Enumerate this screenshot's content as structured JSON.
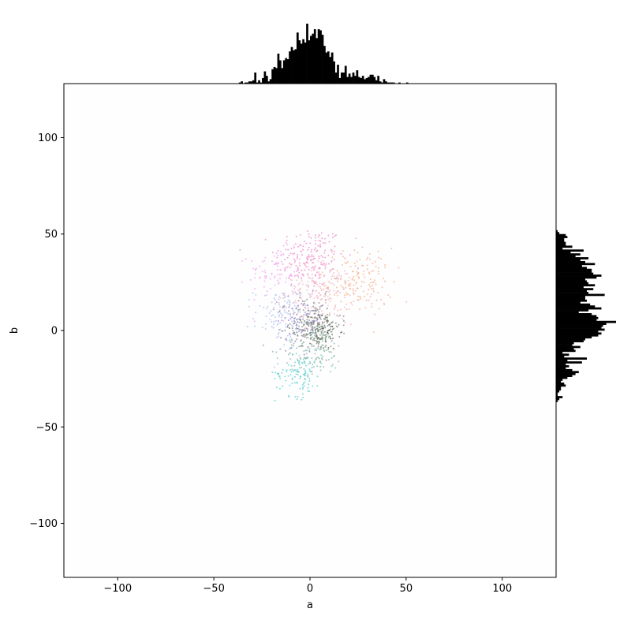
{
  "chart_data": {
    "type": "scatter",
    "title": "",
    "xlabel": "a",
    "ylabel": "b",
    "xlim": [
      -128,
      128
    ],
    "ylim": [
      -128,
      128
    ],
    "x_ticks": [
      -100,
      -50,
      0,
      50,
      100
    ],
    "y_ticks": [
      -100,
      -50,
      0,
      50,
      100
    ],
    "x_tick_labels": [
      "−100",
      "−50",
      "0",
      "50",
      "100"
    ],
    "y_tick_labels": [
      "−100",
      "−50",
      "0",
      "50",
      "100"
    ],
    "grid": false,
    "legend": "none",
    "marginal_histograms": {
      "top": "distribution of a",
      "right": "distribution of b",
      "color": "#000000",
      "approx_peak": {
        "a": -1,
        "b": 12
      }
    },
    "point_clusters": [
      {
        "color": "#f08cc8",
        "center": [
          0,
          38
        ],
        "spread": [
          9,
          8
        ],
        "count": 170
      },
      {
        "color": "#f3a6f0",
        "center": [
          -18,
          30
        ],
        "spread": [
          7,
          6
        ],
        "count": 90
      },
      {
        "color": "#f4b28d",
        "center": [
          25,
          25
        ],
        "spread": [
          9,
          9
        ],
        "count": 160
      },
      {
        "color": "#f3b8c8",
        "center": [
          5,
          20
        ],
        "spread": [
          9,
          8
        ],
        "count": 200
      },
      {
        "color": "#b0c0f0",
        "center": [
          -15,
          8
        ],
        "spread": [
          7,
          7
        ],
        "count": 110
      },
      {
        "color": "#8a8a8a",
        "center": [
          2,
          3
        ],
        "spread": [
          7,
          7
        ],
        "count": 200
      },
      {
        "color": "#5a6a50",
        "center": [
          5,
          0
        ],
        "spread": [
          5,
          5
        ],
        "count": 90
      },
      {
        "color": "#8ab6a8",
        "center": [
          2,
          -10
        ],
        "spread": [
          8,
          7
        ],
        "count": 120
      },
      {
        "color": "#5fcfd0",
        "center": [
          -6,
          -22
        ],
        "spread": [
          6,
          6
        ],
        "count": 110
      },
      {
        "color": "#9a8ad8",
        "center": [
          -5,
          5
        ],
        "spread": [
          6,
          6
        ],
        "count": 70
      }
    ]
  }
}
